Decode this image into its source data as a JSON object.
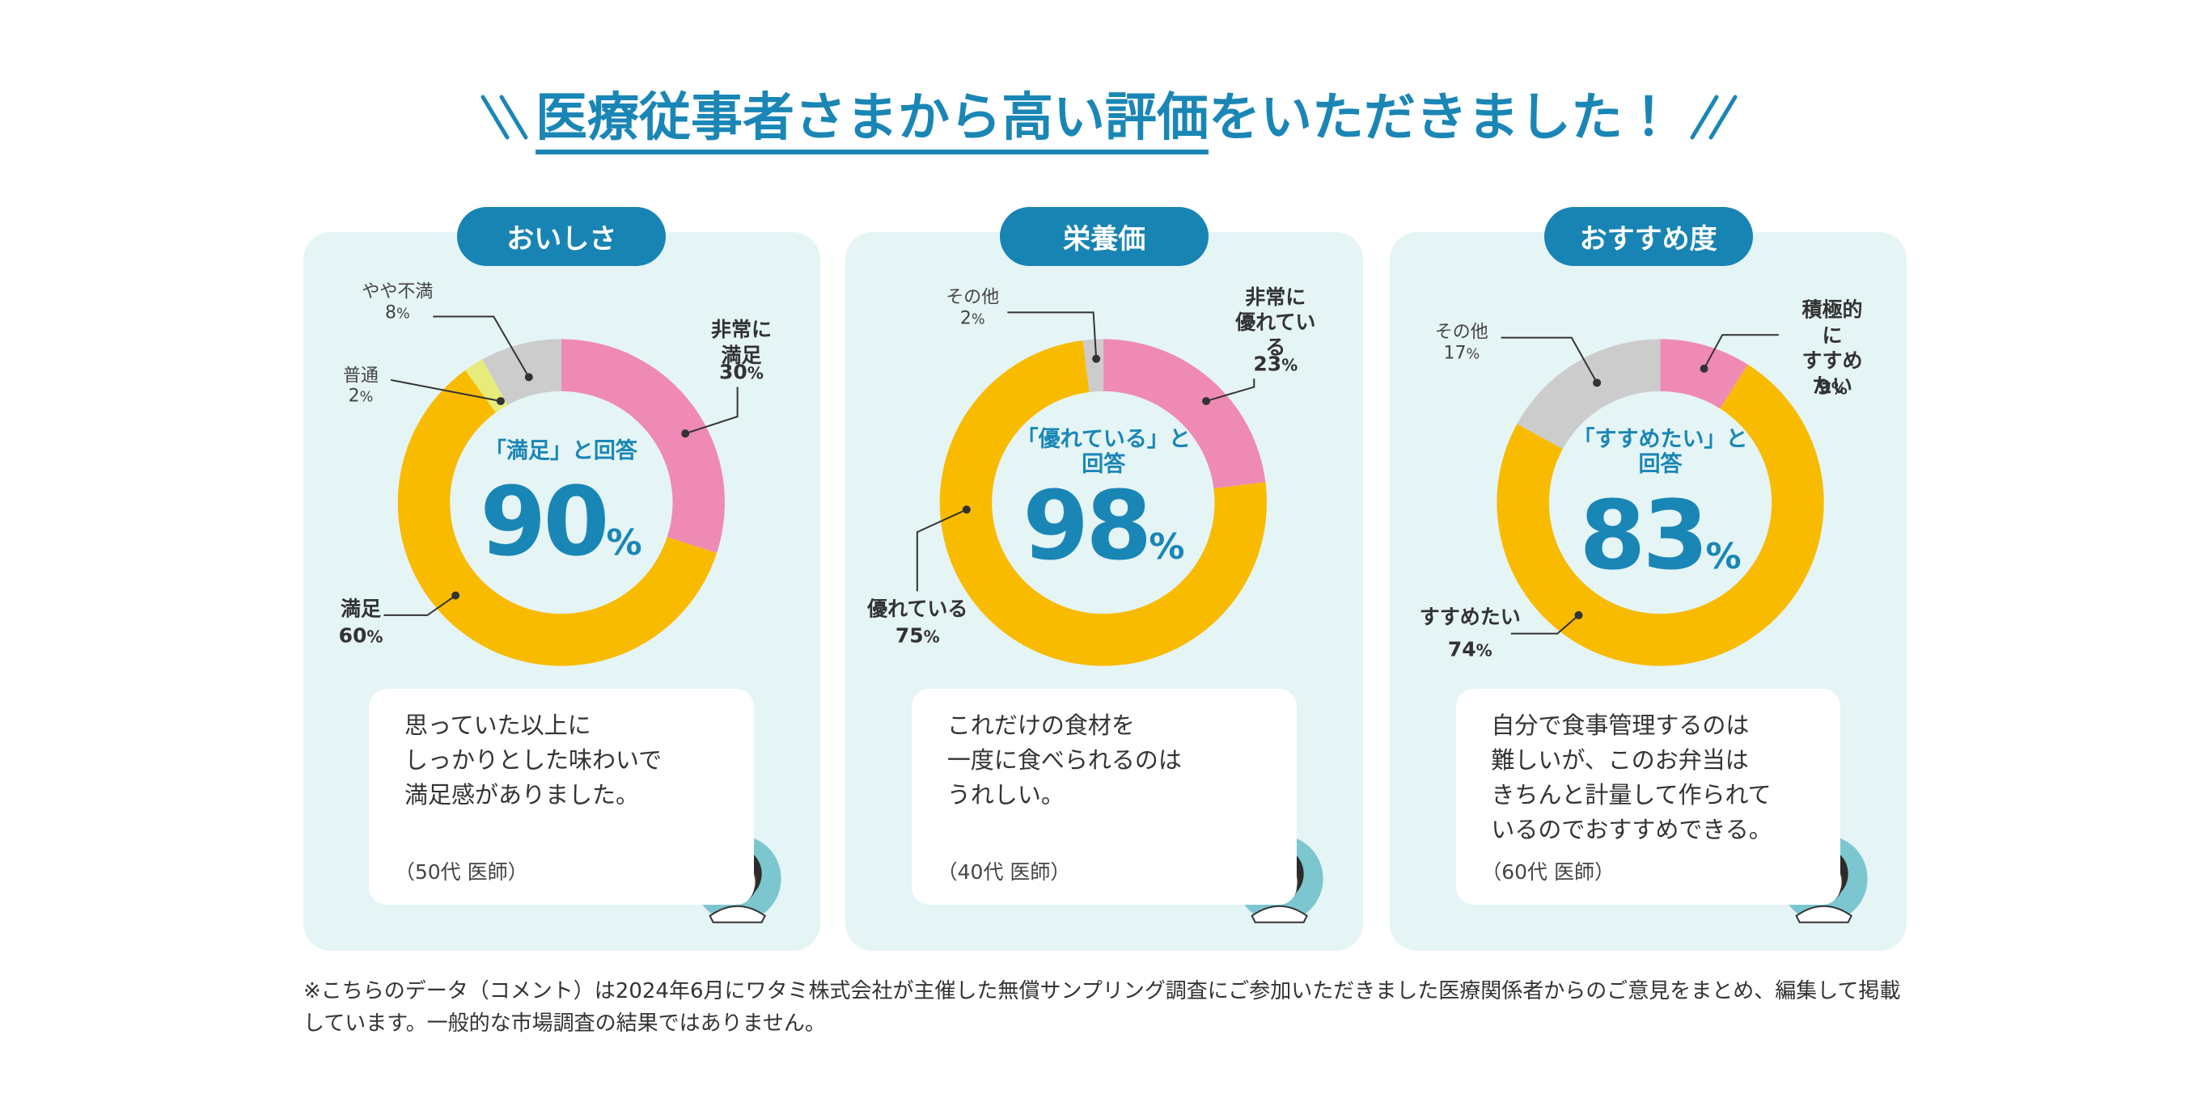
{
  "title_main": "医療従事者さまから高い評価",
  "title_rest": "をいただきました！",
  "chart_data": [
    {
      "type": "pie",
      "title": "おいしさ",
      "summary_label": "「満足」と回答",
      "summary_text": "90%",
      "categories": [
        "非常に満足",
        "満足",
        "普通",
        "やや不満"
      ],
      "values": [
        30,
        60,
        2,
        8
      ],
      "value_labels": [
        "30%",
        "60%",
        "2%",
        "8%"
      ],
      "colors": [
        "#ef8ab4",
        "#f8bb00",
        "#e6eb7a",
        "#cccccc"
      ],
      "comment": "思っていた以上に\nしっかりとした味わいで\n満足感がありました。",
      "author": "（50代 医師）"
    },
    {
      "type": "pie",
      "title": "栄養価",
      "summary_label": "「優れている」と\n回答",
      "summary_text": "98%",
      "categories": [
        "非常に\n優れている",
        "優れている",
        "その他"
      ],
      "values": [
        23,
        75,
        2
      ],
      "value_labels": [
        "23%",
        "75%",
        "2%"
      ],
      "colors": [
        "#ef8ab4",
        "#f8bb00",
        "#cccccc"
      ],
      "comment": "これだけの食材を\n一度に食べられるのは\nうれしい。",
      "author": "（40代 医師）"
    },
    {
      "type": "pie",
      "title": "おすすめ度",
      "summary_label": "「すすめたい」と\n回答",
      "summary_text": "83%",
      "categories": [
        "積極的に\nすすめたい",
        "すすめたい",
        "その他"
      ],
      "values": [
        9,
        74,
        17
      ],
      "value_labels": [
        "9%",
        "74%",
        "17%"
      ],
      "colors": [
        "#ef8ab4",
        "#f8bb00",
        "#cccccc"
      ],
      "comment": "自分で食事管理するのは\n難しいが、このお弁当は\nきちんと計量して作られて\nいるのでおすすめできる。",
      "author": "（60代 医師）"
    }
  ],
  "footnote": "※こちらのデータ（コメント）は2024年6月にワタミ株式会社が主催した無償サンプリング調査にご参加いただきました医療関係者からのご意見をまとめ、編集して掲載しています。一般的な市場調査の結果ではありません。"
}
